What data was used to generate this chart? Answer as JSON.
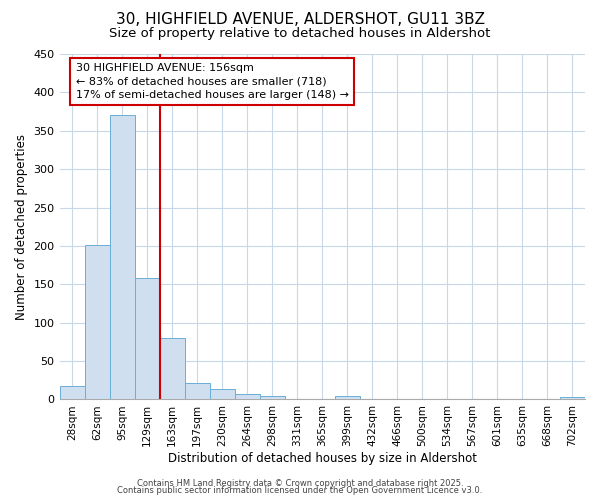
{
  "title": "30, HIGHFIELD AVENUE, ALDERSHOT, GU11 3BZ",
  "subtitle": "Size of property relative to detached houses in Aldershot",
  "xlabel": "Distribution of detached houses by size in Aldershot",
  "ylabel": "Number of detached properties",
  "bar_labels": [
    "28sqm",
    "62sqm",
    "95sqm",
    "129sqm",
    "163sqm",
    "197sqm",
    "230sqm",
    "264sqm",
    "298sqm",
    "331sqm",
    "365sqm",
    "399sqm",
    "432sqm",
    "466sqm",
    "500sqm",
    "534sqm",
    "567sqm",
    "601sqm",
    "635sqm",
    "668sqm",
    "702sqm"
  ],
  "bar_values": [
    18,
    201,
    370,
    158,
    80,
    22,
    14,
    7,
    4,
    0,
    0,
    5,
    0,
    0,
    0,
    0,
    0,
    0,
    0,
    0,
    3
  ],
  "bar_color": "#cfdff0",
  "bar_edge_color": "#6aaed6",
  "vline_x_idx": 3.5,
  "vline_color": "#cc0000",
  "annotation_text": "30 HIGHFIELD AVENUE: 156sqm\n← 83% of detached houses are smaller (718)\n17% of semi-detached houses are larger (148) →",
  "annotation_box_color": "#ffffff",
  "annotation_box_edge": "#cc0000",
  "ylim": [
    0,
    450
  ],
  "yticks": [
    0,
    50,
    100,
    150,
    200,
    250,
    300,
    350,
    400,
    450
  ],
  "footer1": "Contains HM Land Registry data © Crown copyright and database right 2025.",
  "footer2": "Contains public sector information licensed under the Open Government Licence v3.0.",
  "bg_color": "#ffffff",
  "grid_color": "#c8d8e8",
  "title_fontsize": 11,
  "subtitle_fontsize": 9.5,
  "tick_fontsize": 7.5,
  "ylabel_fontsize": 8.5,
  "xlabel_fontsize": 8.5,
  "ann_fontsize": 8.0,
  "footer_fontsize": 6.0
}
